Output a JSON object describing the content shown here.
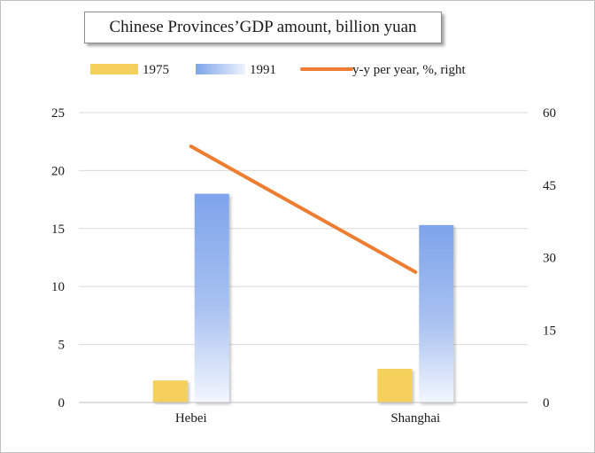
{
  "chart_data": {
    "type": "bar",
    "title": "Chinese Provinces’GDP amount, billion yuan",
    "categories": [
      "Hebei",
      "Shanghai"
    ],
    "series": [
      {
        "name": "1975",
        "kind": "bar",
        "axis": "left",
        "values": [
          1.9,
          2.9
        ],
        "color": "#f5d15c"
      },
      {
        "name": "1991",
        "kind": "bar",
        "axis": "left",
        "values": [
          18.0,
          15.3
        ],
        "color": "#7ea4ea"
      },
      {
        "name": "y-y per year, %, right",
        "kind": "line",
        "axis": "right",
        "values": [
          53,
          27
        ],
        "color": "#ed7d31"
      }
    ],
    "y_left": {
      "min": 0,
      "max": 25,
      "ticks": [
        "0",
        "5",
        "10",
        "15",
        "20",
        "25"
      ]
    },
    "y_right": {
      "min": 0,
      "max": 60,
      "ticks": [
        "0",
        "15",
        "30",
        "45",
        "60"
      ]
    },
    "grid": true,
    "legend_position": "top"
  }
}
